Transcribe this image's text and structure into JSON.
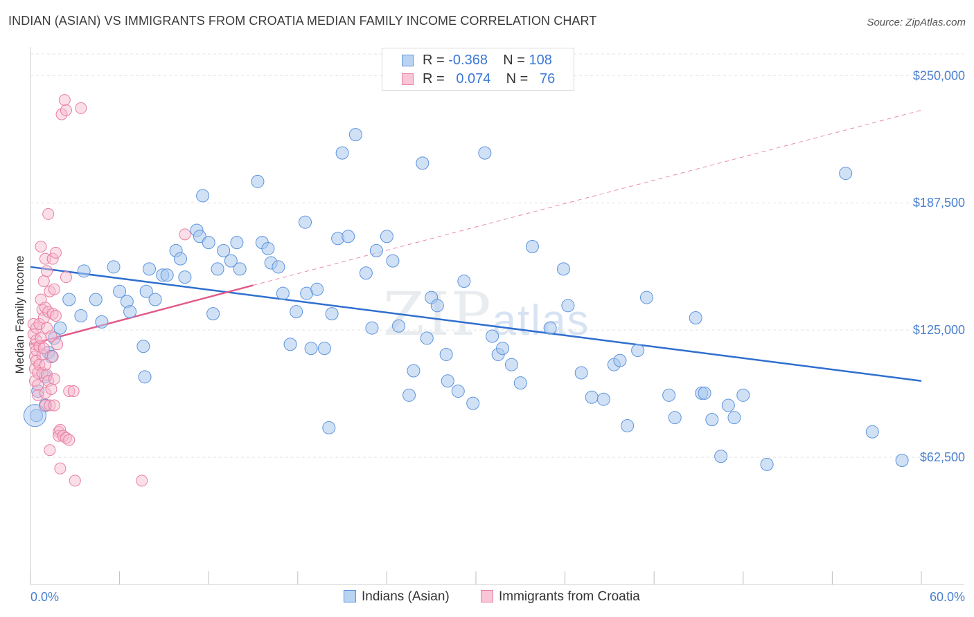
{
  "title": "INDIAN (ASIAN) VS IMMIGRANTS FROM CROATIA MEDIAN FAMILY INCOME CORRELATION CHART",
  "source": "Source: ZipAtlas.com",
  "watermark": {
    "zip": "ZIP",
    "atlas": "atlas"
  },
  "legend": {
    "rows": [
      {
        "r_label": "R =",
        "r_value": "-0.368",
        "n_label": "N =",
        "n_value": "108"
      },
      {
        "r_label": "R =",
        "r_value": "0.074",
        "n_label": "N =",
        "n_value": "76"
      }
    ]
  },
  "bottom_legend": {
    "series1": "Indians (Asian)",
    "series2": "Immigrants from Croatia"
  },
  "colors": {
    "blue_fill": "#a9c8ef",
    "blue_stroke": "#5b93dc",
    "blue_line": "#2f6fcf",
    "pink_fill": "#f6b9cc",
    "pink_stroke": "#e87ea0",
    "pink_line": "#e05a8a",
    "tick_text": "#4a7fd1",
    "grid": "#e3e3e3"
  },
  "chart_data": {
    "type": "scatter",
    "title": "INDIAN (ASIAN) VS IMMIGRANTS FROM CROATIA MEDIAN FAMILY INCOME CORRELATION CHART",
    "xlabel": "",
    "ylabel": "Median Family Income",
    "xlim": [
      0,
      60
    ],
    "ylim": [
      0,
      262000
    ],
    "x_tick_labels": [
      "0.0%",
      "60.0%"
    ],
    "y_ticks": [
      62500,
      125000,
      187500,
      250000
    ],
    "y_tick_labels": [
      "$62,500",
      "$125,000",
      "$187,500",
      "$250,000"
    ],
    "grid": true,
    "legend_position": "top-center",
    "series": [
      {
        "name": "Indians (Asian)",
        "color": "#5b93dc",
        "R": -0.368,
        "N": 108,
        "trend": {
          "x": [
            0,
            60
          ],
          "y": [
            156000,
            100000
          ]
        },
        "points": [
          [
            0.4,
            83000
          ],
          [
            0.5,
            95000
          ],
          [
            1.0,
            88000
          ],
          [
            1.0,
            102000
          ],
          [
            1.2,
            114000
          ],
          [
            1.4,
            112000
          ],
          [
            1.6,
            121000
          ],
          [
            2.0,
            126000
          ],
          [
            2.6,
            140000
          ],
          [
            3.4,
            132000
          ],
          [
            3.6,
            154000
          ],
          [
            4.4,
            140000
          ],
          [
            4.8,
            129000
          ],
          [
            5.6,
            156000
          ],
          [
            6.0,
            144000
          ],
          [
            6.5,
            139000
          ],
          [
            6.7,
            134000
          ],
          [
            7.6,
            117000
          ],
          [
            7.7,
            102000
          ],
          [
            7.8,
            144000
          ],
          [
            8.0,
            155000
          ],
          [
            8.4,
            140000
          ],
          [
            8.9,
            152000
          ],
          [
            9.2,
            152000
          ],
          [
            9.8,
            164000
          ],
          [
            10.1,
            160000
          ],
          [
            10.4,
            151000
          ],
          [
            11.2,
            174000
          ],
          [
            11.4,
            171000
          ],
          [
            11.6,
            191000
          ],
          [
            12.0,
            168000
          ],
          [
            12.3,
            133000
          ],
          [
            12.6,
            155000
          ],
          [
            13.0,
            164000
          ],
          [
            13.5,
            159000
          ],
          [
            13.9,
            168000
          ],
          [
            14.1,
            155000
          ],
          [
            15.3,
            198000
          ],
          [
            15.6,
            168000
          ],
          [
            16.0,
            165000
          ],
          [
            16.2,
            158000
          ],
          [
            16.7,
            156000
          ],
          [
            17.0,
            143000
          ],
          [
            17.5,
            118000
          ],
          [
            17.9,
            134000
          ],
          [
            18.5,
            178000
          ],
          [
            18.6,
            143000
          ],
          [
            18.9,
            116000
          ],
          [
            19.3,
            145000
          ],
          [
            19.8,
            116000
          ],
          [
            20.1,
            77000
          ],
          [
            20.3,
            133000
          ],
          [
            20.7,
            170000
          ],
          [
            21.0,
            212000
          ],
          [
            21.4,
            171000
          ],
          [
            21.9,
            221000
          ],
          [
            22.6,
            153000
          ],
          [
            23.0,
            126000
          ],
          [
            23.3,
            164000
          ],
          [
            24.0,
            171000
          ],
          [
            24.4,
            159000
          ],
          [
            24.8,
            127000
          ],
          [
            25.5,
            93000
          ],
          [
            25.8,
            105000
          ],
          [
            26.4,
            207000
          ],
          [
            26.7,
            121000
          ],
          [
            27.0,
            141000
          ],
          [
            27.4,
            137000
          ],
          [
            28.0,
            113000
          ],
          [
            28.1,
            100000
          ],
          [
            28.8,
            95000
          ],
          [
            29.2,
            149000
          ],
          [
            29.8,
            89000
          ],
          [
            30.6,
            212000
          ],
          [
            31.1,
            122000
          ],
          [
            31.5,
            113000
          ],
          [
            31.8,
            116000
          ],
          [
            32.4,
            108000
          ],
          [
            33.0,
            99000
          ],
          [
            33.8,
            166000
          ],
          [
            35.0,
            126000
          ],
          [
            35.9,
            155000
          ],
          [
            36.2,
            137000
          ],
          [
            37.1,
            104000
          ],
          [
            37.8,
            92000
          ],
          [
            38.6,
            91000
          ],
          [
            39.3,
            108000
          ],
          [
            39.7,
            110000
          ],
          [
            40.2,
            78000
          ],
          [
            40.9,
            115000
          ],
          [
            41.5,
            141000
          ],
          [
            43.0,
            93000
          ],
          [
            43.4,
            82000
          ],
          [
            44.8,
            131000
          ],
          [
            45.2,
            94000
          ],
          [
            45.4,
            94000
          ],
          [
            45.9,
            81000
          ],
          [
            46.5,
            63000
          ],
          [
            47.0,
            88000
          ],
          [
            47.4,
            82000
          ],
          [
            48.0,
            93000
          ],
          [
            49.6,
            59000
          ],
          [
            54.9,
            202000
          ],
          [
            56.7,
            75000
          ],
          [
            58.7,
            61000
          ]
        ]
      },
      {
        "name": "Immigrants from Croatia",
        "color": "#e87ea0",
        "R": 0.074,
        "N": 76,
        "trend": {
          "x": [
            0,
            15
          ],
          "y": [
            118000,
            147000
          ]
        },
        "trend_extension": {
          "x": [
            15,
            60
          ],
          "y": [
            147000,
            233000
          ]
        },
        "points": [
          [
            0.2,
            128000
          ],
          [
            0.2,
            123000
          ],
          [
            0.3,
            118000
          ],
          [
            0.3,
            112000
          ],
          [
            0.3,
            106000
          ],
          [
            0.3,
            100000
          ],
          [
            0.4,
            126000
          ],
          [
            0.4,
            120000
          ],
          [
            0.4,
            115000
          ],
          [
            0.4,
            110000
          ],
          [
            0.5,
            104000
          ],
          [
            0.5,
            98000
          ],
          [
            0.5,
            93000
          ],
          [
            0.6,
            128000
          ],
          [
            0.6,
            117000
          ],
          [
            0.6,
            108000
          ],
          [
            0.7,
            166000
          ],
          [
            0.7,
            140000
          ],
          [
            0.7,
            121000
          ],
          [
            0.8,
            135000
          ],
          [
            0.8,
            113000
          ],
          [
            0.8,
            104000
          ],
          [
            0.9,
            149000
          ],
          [
            0.9,
            131000
          ],
          [
            0.9,
            116000
          ],
          [
            1.0,
            160000
          ],
          [
            1.0,
            136000
          ],
          [
            1.0,
            108000
          ],
          [
            1.0,
            94000
          ],
          [
            1.0,
            88000
          ],
          [
            1.1,
            154000
          ],
          [
            1.1,
            126000
          ],
          [
            1.1,
            103000
          ],
          [
            1.2,
            182000
          ],
          [
            1.2,
            134000
          ],
          [
            1.2,
            100000
          ],
          [
            1.3,
            144000
          ],
          [
            1.3,
            88000
          ],
          [
            1.3,
            66000
          ],
          [
            1.4,
            122000
          ],
          [
            1.4,
            96000
          ],
          [
            1.5,
            160000
          ],
          [
            1.5,
            133000
          ],
          [
            1.5,
            112000
          ],
          [
            1.6,
            145000
          ],
          [
            1.6,
            101000
          ],
          [
            1.6,
            88000
          ],
          [
            1.7,
            163000
          ],
          [
            1.7,
            132000
          ],
          [
            1.8,
            118000
          ],
          [
            1.9,
            75000
          ],
          [
            1.9,
            73000
          ],
          [
            2.0,
            76000
          ],
          [
            2.0,
            57000
          ],
          [
            2.1,
            231000
          ],
          [
            2.2,
            73000
          ],
          [
            2.3,
            238000
          ],
          [
            2.4,
            151000
          ],
          [
            2.4,
            72000
          ],
          [
            2.4,
            233000
          ],
          [
            2.6,
            71000
          ],
          [
            2.6,
            95000
          ],
          [
            2.9,
            95000
          ],
          [
            3.0,
            51000
          ],
          [
            3.4,
            234000
          ],
          [
            7.5,
            51000
          ],
          [
            10.4,
            172000
          ]
        ]
      }
    ]
  }
}
